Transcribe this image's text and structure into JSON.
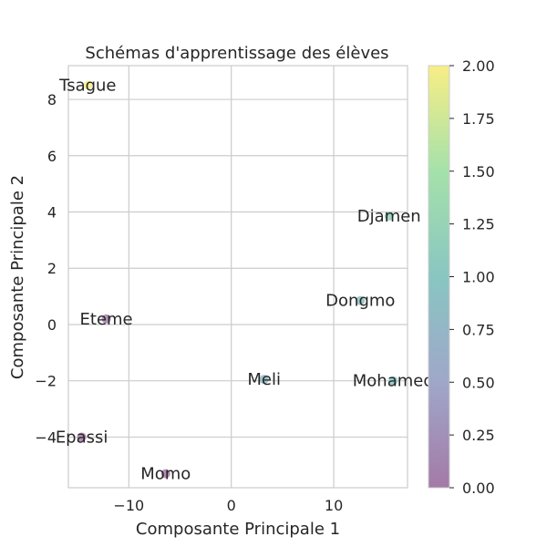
{
  "chart_data": {
    "type": "scatter",
    "title": "Schémas d'apprentissage des élèves",
    "xlabel": "Composante Principale 1",
    "ylabel": "Composante Principale 2",
    "xlim": [
      -15.9,
      17.2
    ],
    "ylim": [
      -5.8,
      9.2
    ],
    "xticks": [
      -10,
      0,
      10
    ],
    "yticks": [
      -4,
      -2,
      0,
      2,
      4,
      6,
      8
    ],
    "xtick_labels": [
      "−10",
      "0",
      "10"
    ],
    "ytick_labels": [
      "−4",
      "−2",
      "0",
      "2",
      "4",
      "6",
      "8"
    ],
    "grid": true,
    "colormap": "viridis",
    "colorbar": {
      "min": 0.0,
      "max": 2.0,
      "ticks": [
        0.0,
        0.25,
        0.5,
        0.75,
        1.0,
        1.25,
        1.5,
        1.75,
        2.0
      ],
      "tick_labels": [
        "0.00",
        "0.25",
        "0.50",
        "0.75",
        "1.00",
        "1.25",
        "1.50",
        "1.75",
        "2.00"
      ]
    },
    "points": [
      {
        "label": "Tsague",
        "x": -14.0,
        "y": 8.5,
        "c": 2.0
      },
      {
        "label": "Djamen",
        "x": 15.4,
        "y": 3.85,
        "c": 1.2
      },
      {
        "label": "Dongmo",
        "x": 12.6,
        "y": 0.85,
        "c": 0.9
      },
      {
        "label": "Eteme",
        "x": -12.2,
        "y": 0.2,
        "c": 0.1
      },
      {
        "label": "Meli",
        "x": 3.2,
        "y": -1.95,
        "c": 0.8
      },
      {
        "label": "Mohamed",
        "x": 15.8,
        "y": -2.0,
        "c": 1.0
      },
      {
        "label": "Epassi",
        "x": -14.6,
        "y": -4.0,
        "c": 0.0
      },
      {
        "label": "Momo",
        "x": -6.4,
        "y": -5.3,
        "c": 0.0
      }
    ]
  }
}
